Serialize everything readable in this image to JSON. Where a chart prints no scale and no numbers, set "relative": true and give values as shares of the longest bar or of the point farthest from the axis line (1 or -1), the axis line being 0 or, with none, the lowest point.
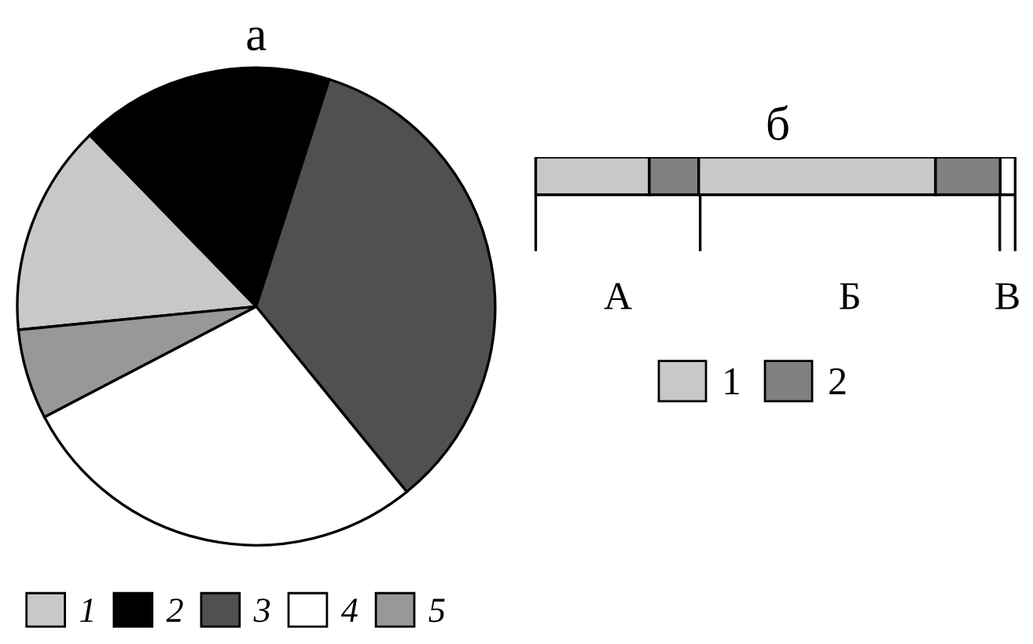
{
  "chart_data": [
    {
      "type": "pie",
      "title": "а",
      "categories": [
        "1",
        "2",
        "3",
        "4",
        "5"
      ],
      "values": [
        14.3,
        17.2,
        34.2,
        28.2,
        6.1
      ],
      "colors": [
        "#c8c8c8",
        "#000000",
        "#505050",
        "#ffffff",
        "#989898"
      ],
      "legend": "bottom left"
    },
    {
      "type": "bar",
      "title": "б",
      "orientation": "horizontal",
      "stacked": true,
      "relative": true,
      "categories": [
        null
      ],
      "series": [
        {
          "name": "1",
          "color": "#c8c8c8",
          "values": [
            0.237
          ]
        },
        {
          "name": "2",
          "color": "#808080",
          "values": [
            0.103
          ]
        },
        {
          "color": "#c8c8c8",
          "values": [
            0.494
          ]
        },
        {
          "color": "#808080",
          "values": [
            0.135
          ]
        },
        {
          "color": "#ffffff",
          "values": [
            0.031
          ]
        }
      ],
      "ref_lines": [
        {
          "axis": "x",
          "value": 0
        },
        {
          "axis": "x",
          "value": 0.343
        },
        {
          "axis": "x",
          "value": 0.968
        },
        {
          "axis": "x",
          "value": 1.0
        }
      ],
      "annotations": [
        "А",
        "Б",
        "В"
      ],
      "legend": "bottom"
    }
  ]
}
